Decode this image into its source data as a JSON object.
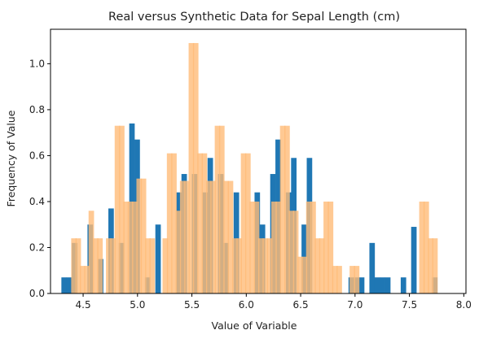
{
  "chart_data": {
    "type": "bar",
    "title": "Real versus Synthetic Data for Sepal Length (cm)",
    "xlabel": "Value of Variable",
    "ylabel": "Frequency of Value",
    "xlim": [
      4.2,
      8.02
    ],
    "ylim": [
      0,
      1.15
    ],
    "xticks": [
      "4.5",
      "5.0",
      "5.5",
      "6.0",
      "6.5",
      "7.0",
      "7.5",
      "8.0"
    ],
    "yticks": [
      "0.0",
      "0.2",
      "0.4",
      "0.6",
      "0.8",
      "1.0"
    ],
    "grid": false,
    "bin_width": 0.048,
    "series": [
      {
        "color": "#1f77b4",
        "alpha": 1.0,
        "x": [
          4.3,
          4.348,
          4.396,
          4.444,
          4.492,
          4.54,
          4.588,
          4.636,
          4.684,
          4.732,
          4.78,
          4.828,
          4.876,
          4.924,
          4.972,
          5.02,
          5.068,
          5.116,
          5.164,
          5.212,
          5.26,
          5.308,
          5.356,
          5.404,
          5.452,
          5.5,
          5.548,
          5.596,
          5.644,
          5.692,
          5.74,
          5.788,
          5.836,
          5.884,
          5.932,
          5.98,
          6.028,
          6.076,
          6.124,
          6.172,
          6.22,
          6.268,
          6.316,
          6.364,
          6.412,
          6.46,
          6.508,
          6.556,
          6.604,
          6.652,
          6.7,
          6.748,
          6.796,
          6.844,
          6.892,
          6.94,
          6.988,
          7.036,
          7.084,
          7.132,
          7.18,
          7.228,
          7.276,
          7.324,
          7.372,
          7.42,
          7.468,
          7.516,
          7.564,
          7.612,
          7.66,
          7.708,
          7.756,
          7.804,
          7.852
        ],
        "values": [
          0.07,
          0.07,
          0.22,
          0,
          0,
          0.3,
          0,
          0.15,
          0,
          0.37,
          0,
          0.22,
          0,
          0.74,
          0.67,
          0,
          0.07,
          0,
          0.3,
          0,
          0,
          0,
          0.44,
          0.52,
          0,
          0.52,
          0,
          0.44,
          0.59,
          0,
          0.52,
          0.22,
          0,
          0.44,
          0,
          0,
          0,
          0.44,
          0.3,
          0,
          0.52,
          0.67,
          0,
          0.44,
          0.59,
          0,
          0.3,
          0.59,
          0,
          0,
          0,
          0,
          0,
          0,
          0,
          0.07,
          0.07,
          0.07,
          0,
          0.22,
          0.07,
          0.07,
          0.07,
          0,
          0,
          0.07,
          0,
          0.29,
          0,
          0,
          0,
          0.07,
          0,
          0,
          0
        ]
      },
      {
        "color": "#ffbb78",
        "alpha": 0.8,
        "x": [
          4.39,
          4.43,
          4.47,
          4.51,
          4.55,
          4.59,
          4.63,
          4.67,
          4.71,
          4.75,
          4.79,
          4.83,
          4.87,
          4.91,
          4.95,
          4.99,
          5.03,
          5.07,
          5.11,
          5.15,
          5.19,
          5.23,
          5.27,
          5.31,
          5.35,
          5.39,
          5.43,
          5.47,
          5.51,
          5.55,
          5.59,
          5.63,
          5.67,
          5.71,
          5.75,
          5.79,
          5.83,
          5.87,
          5.91,
          5.95,
          5.99,
          6.03,
          6.07,
          6.11,
          6.15,
          6.19,
          6.23,
          6.27,
          6.31,
          6.35,
          6.39,
          6.43,
          6.47,
          6.51,
          6.55,
          6.59,
          6.63,
          6.67,
          6.71,
          6.75,
          6.79,
          6.83,
          6.87,
          6.91,
          6.95,
          6.99,
          7.03,
          7.07,
          7.11,
          7.15,
          7.19,
          7.23,
          7.27,
          7.31,
          7.35,
          7.39,
          7.43,
          7.47,
          7.51,
          7.55,
          7.59,
          7.63,
          7.67,
          7.71
        ],
        "values": [
          0.24,
          0.24,
          0.12,
          0.12,
          0.36,
          0.24,
          0.24,
          0,
          0.24,
          0.24,
          0.73,
          0.73,
          0.4,
          0.4,
          0.4,
          0.5,
          0.5,
          0.24,
          0.24,
          0,
          0,
          0.24,
          0.61,
          0.61,
          0.36,
          0.49,
          0.49,
          1.09,
          1.09,
          0.61,
          0.61,
          0.49,
          0.49,
          0.73,
          0.73,
          0.49,
          0.49,
          0.24,
          0.24,
          0.61,
          0.61,
          0.4,
          0.4,
          0.24,
          0.24,
          0.24,
          0.4,
          0.4,
          0.73,
          0.73,
          0.36,
          0.36,
          0.16,
          0.16,
          0.4,
          0.4,
          0.24,
          0.24,
          0.4,
          0.4,
          0.12,
          0.12,
          0,
          0,
          0.12,
          0.12,
          0,
          0,
          0,
          0,
          0,
          0,
          0,
          0,
          0,
          0,
          0,
          0,
          0,
          0,
          0.4,
          0.4,
          0.24,
          0.24
        ]
      }
    ]
  }
}
